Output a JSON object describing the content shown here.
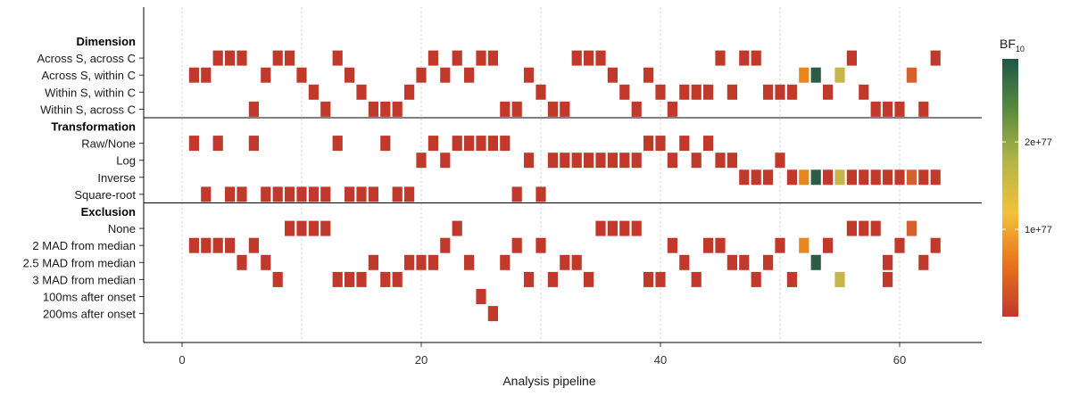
{
  "chart_data": {
    "type": "heatmap",
    "xlabel": "Analysis pipeline",
    "x_ticks": [
      0,
      20,
      40,
      60
    ],
    "xlim": [
      -3.2,
      66.5
    ],
    "legend": {
      "title": "BF",
      "subscript": "10",
      "tick_labels": [
        "1e+77",
        "2e+77"
      ],
      "tick_values": [
        1e+77,
        2e+77
      ],
      "range": [
        0,
        2.95e+77
      ],
      "colors": [
        "#c0392b",
        "#e8711c",
        "#f3c03a",
        "#b5b648",
        "#5b8b3e",
        "#1e5747"
      ],
      "placement": "right"
    },
    "groups": [
      {
        "label": "Dimension",
        "rows": [
          {
            "label": "Across S, across C",
            "x": [
              3,
              4,
              5,
              8,
              9,
              13,
              21,
              23,
              25,
              26,
              33,
              34,
              35,
              45,
              47,
              48,
              56,
              63
            ]
          },
          {
            "label": "Across S, within C",
            "x": [
              1,
              2,
              7,
              10,
              14,
              20,
              22,
              24,
              29,
              36,
              39,
              52,
              53,
              55,
              61
            ]
          },
          {
            "label": "Within S, within C",
            "x": [
              11,
              15,
              19,
              30,
              37,
              40,
              42,
              43,
              44,
              46,
              49,
              50,
              51,
              54,
              57
            ]
          },
          {
            "label": "Within S, across C",
            "x": [
              6,
              12,
              16,
              17,
              18,
              27,
              28,
              31,
              32,
              38,
              41,
              58,
              59,
              60,
              62
            ]
          }
        ]
      },
      {
        "label": "Transformation",
        "rows": [
          {
            "label": "Raw/None",
            "x": [
              1,
              3,
              6,
              13,
              17,
              21,
              23,
              24,
              25,
              26,
              27,
              39,
              40,
              42,
              44
            ]
          },
          {
            "label": "Log",
            "x": [
              20,
              22,
              29,
              31,
              32,
              33,
              34,
              35,
              36,
              37,
              38,
              41,
              43,
              45,
              46,
              50
            ]
          },
          {
            "label": "Inverse",
            "x": [
              47,
              48,
              49,
              51,
              52,
              53,
              54,
              55,
              56,
              57,
              58,
              59,
              60,
              61,
              62,
              63
            ]
          },
          {
            "label": "Square-root",
            "x": [
              2,
              4,
              5,
              7,
              8,
              9,
              10,
              11,
              12,
              14,
              15,
              16,
              18,
              19,
              28,
              30
            ]
          }
        ]
      },
      {
        "label": "Exclusion",
        "rows": [
          {
            "label": "None",
            "x": [
              9,
              10,
              11,
              12,
              23,
              35,
              36,
              37,
              38,
              56,
              57,
              58,
              61
            ]
          },
          {
            "label": "2 MAD from median",
            "x": [
              1,
              2,
              3,
              4,
              6,
              22,
              28,
              30,
              41,
              44,
              45,
              50,
              52,
              54,
              60,
              63
            ]
          },
          {
            "label": "2.5 MAD from median",
            "x": [
              5,
              7,
              16,
              19,
              20,
              21,
              24,
              27,
              32,
              33,
              42,
              46,
              47,
              49,
              53,
              59,
              62
            ]
          },
          {
            "label": "3 MAD from median",
            "x": [
              8,
              13,
              14,
              15,
              17,
              18,
              29,
              31,
              34,
              39,
              40,
              43,
              48,
              51,
              55,
              59
            ]
          },
          {
            "label": "100ms after onset",
            "x": [
              25
            ]
          },
          {
            "label": "200ms after onset",
            "x": [
              26
            ]
          }
        ]
      }
    ],
    "highlights": {
      "52": "#e8871e",
      "53": "#2c5e47",
      "55": "#c9b64a",
      "61": "#d6612e"
    },
    "default_color": "#c0392b"
  }
}
